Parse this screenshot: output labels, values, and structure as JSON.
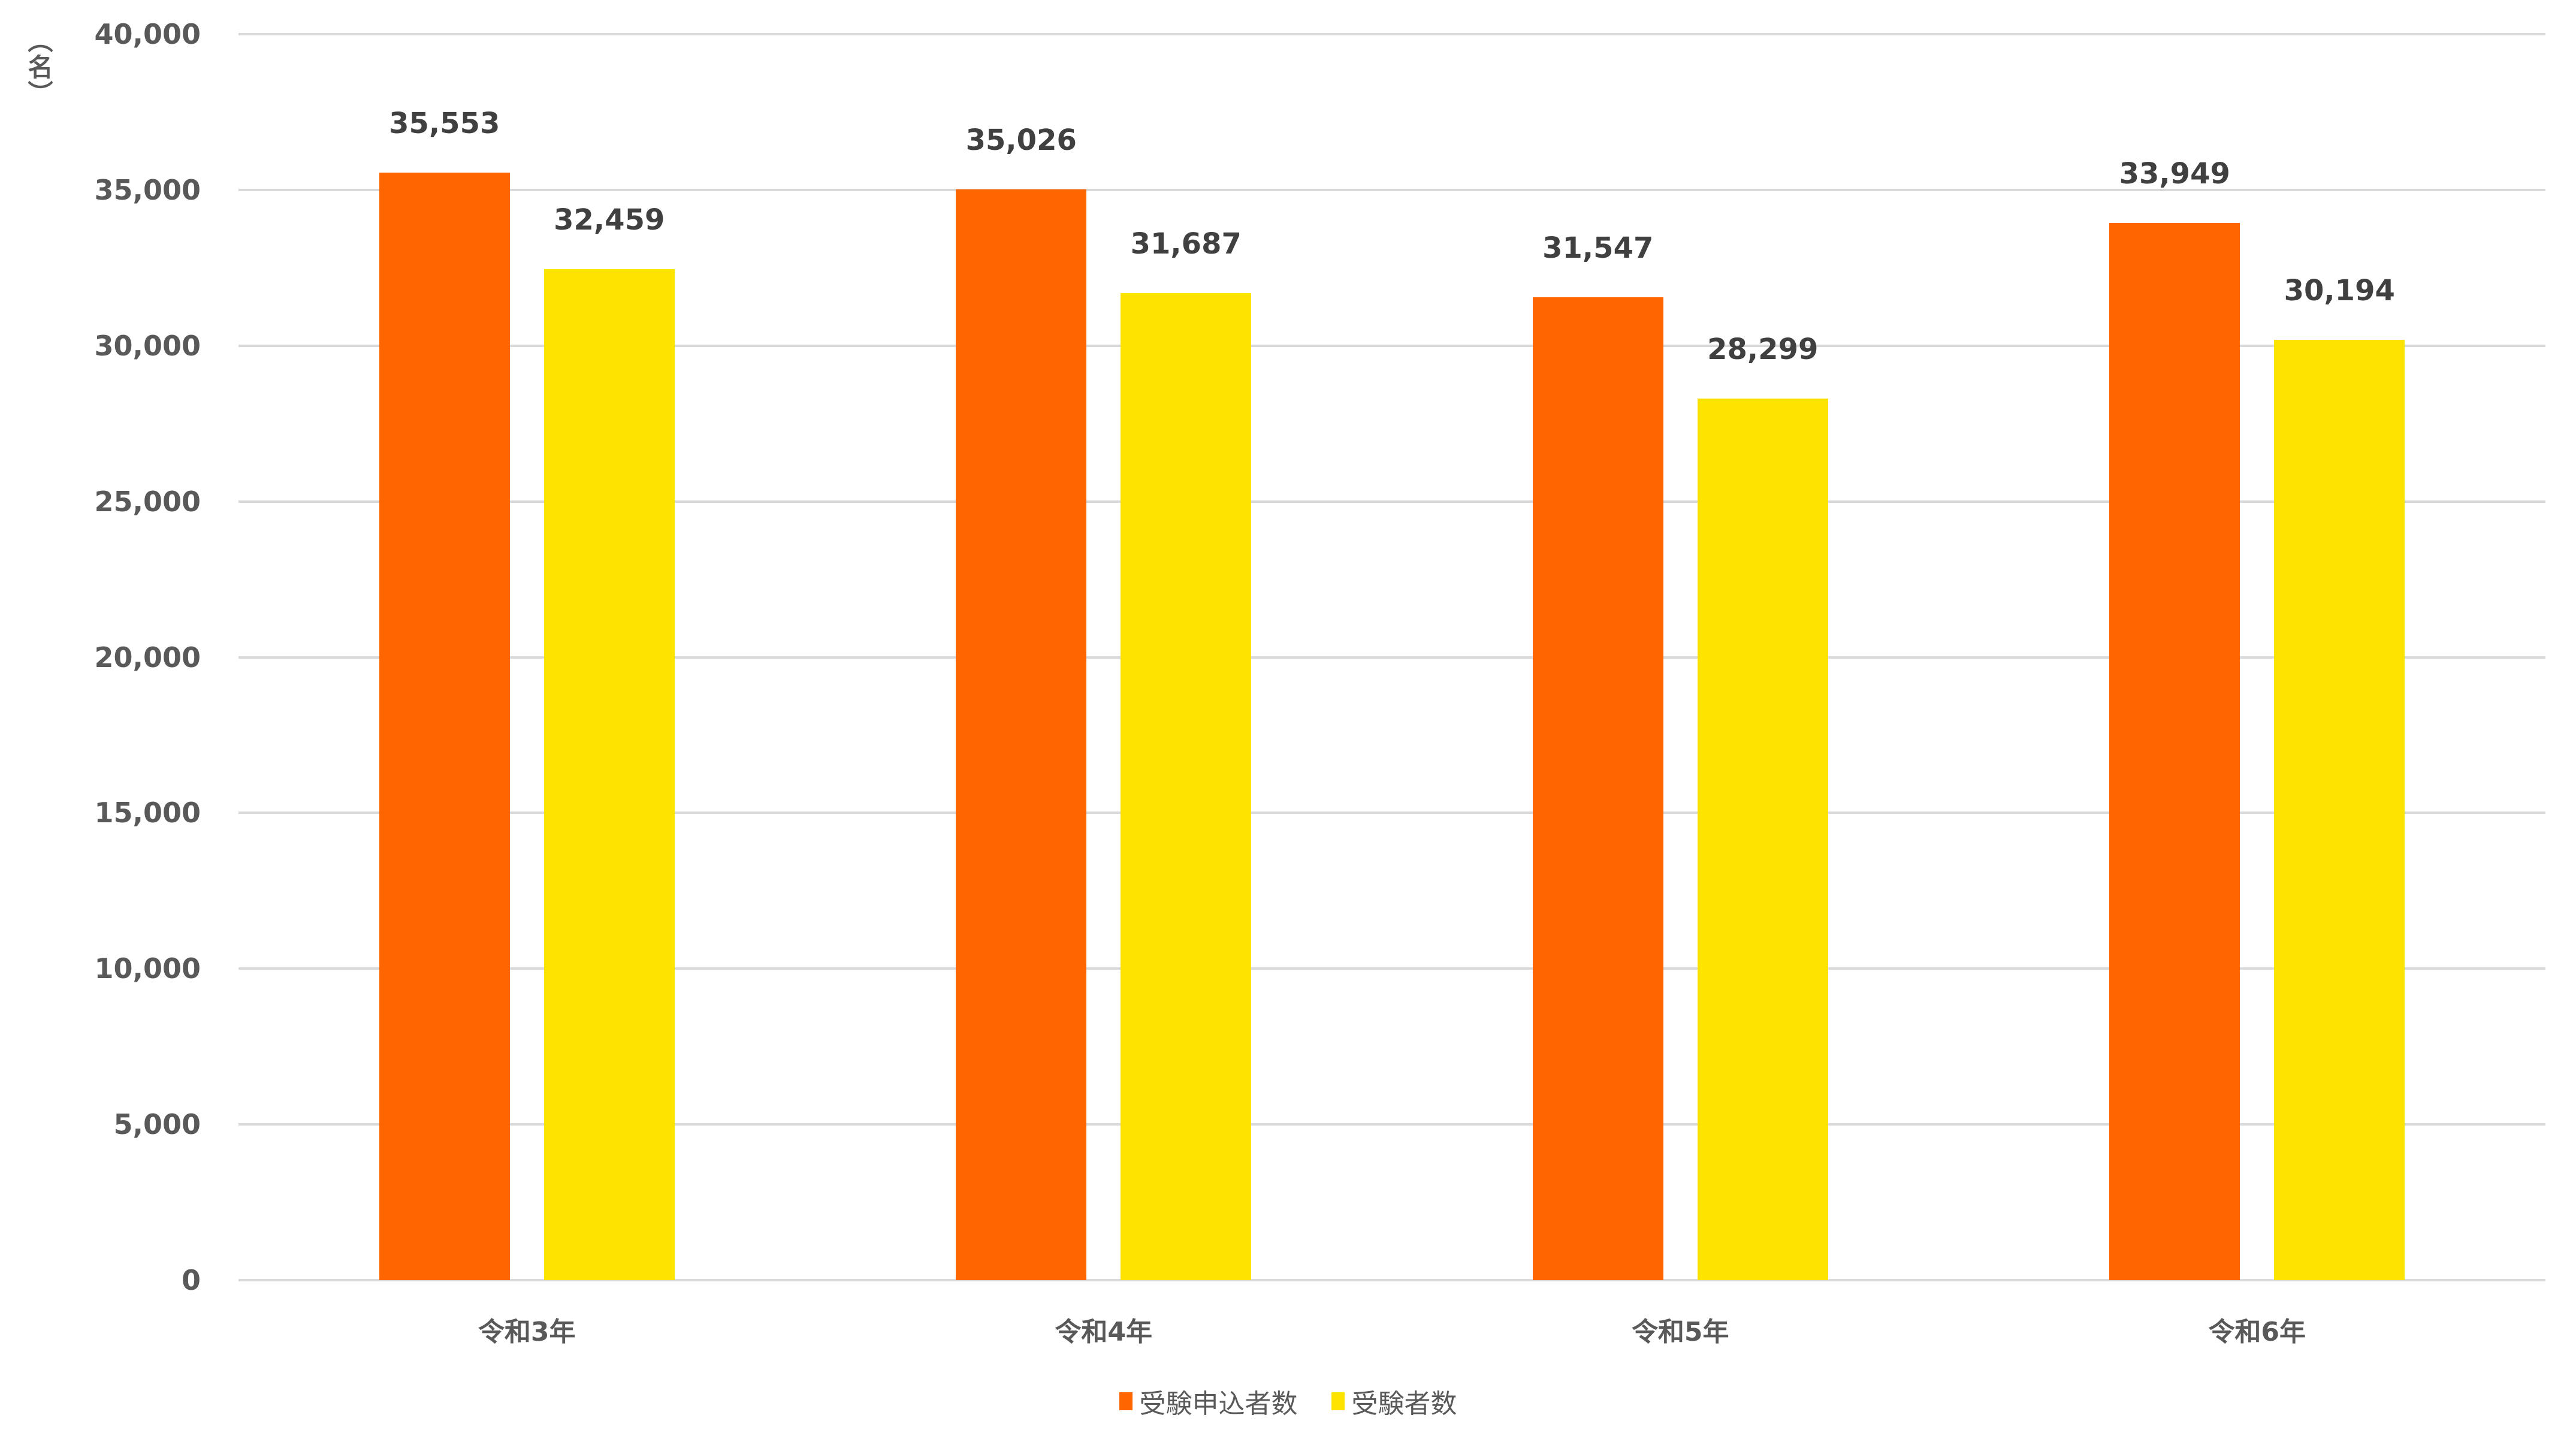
{
  "chart_data": {
    "type": "bar",
    "title": "",
    "xlabel": "",
    "ylabel": "（名）",
    "categories": [
      "令和3年",
      "令和4年",
      "令和5年",
      "令和6年"
    ],
    "series": [
      {
        "name": "受験申込者数",
        "color": "#FF6600",
        "values": [
          35553,
          35026,
          31547,
          33949
        ],
        "labels": [
          "35,553",
          "35,026",
          "31,547",
          "33,949"
        ]
      },
      {
        "name": "受験者数",
        "color": "#FCE300",
        "values": [
          32459,
          31687,
          28299,
          30194
        ],
        "labels": [
          "32,459",
          "31,687",
          "28,299",
          "30,194"
        ]
      }
    ],
    "ylim": [
      0,
      40000
    ],
    "yticks": [
      0,
      5000,
      10000,
      15000,
      20000,
      25000,
      30000,
      35000,
      40000
    ],
    "ytick_labels": [
      "0",
      "5,000",
      "10,000",
      "15,000",
      "20,000",
      "25,000",
      "30,000",
      "35,000",
      "40,000"
    ],
    "grid": true,
    "legend_position": "bottom",
    "data_labels": true
  },
  "axis": {
    "y_unit": "（名）"
  },
  "legend": {
    "items": [
      {
        "label": "受験申込者数",
        "color": "#FF6600"
      },
      {
        "label": "受験者数",
        "color": "#FCE300"
      }
    ]
  },
  "colors": {
    "grid": "#D9D9D9",
    "axis_text": "#595959",
    "data_label_text": "#404040"
  }
}
